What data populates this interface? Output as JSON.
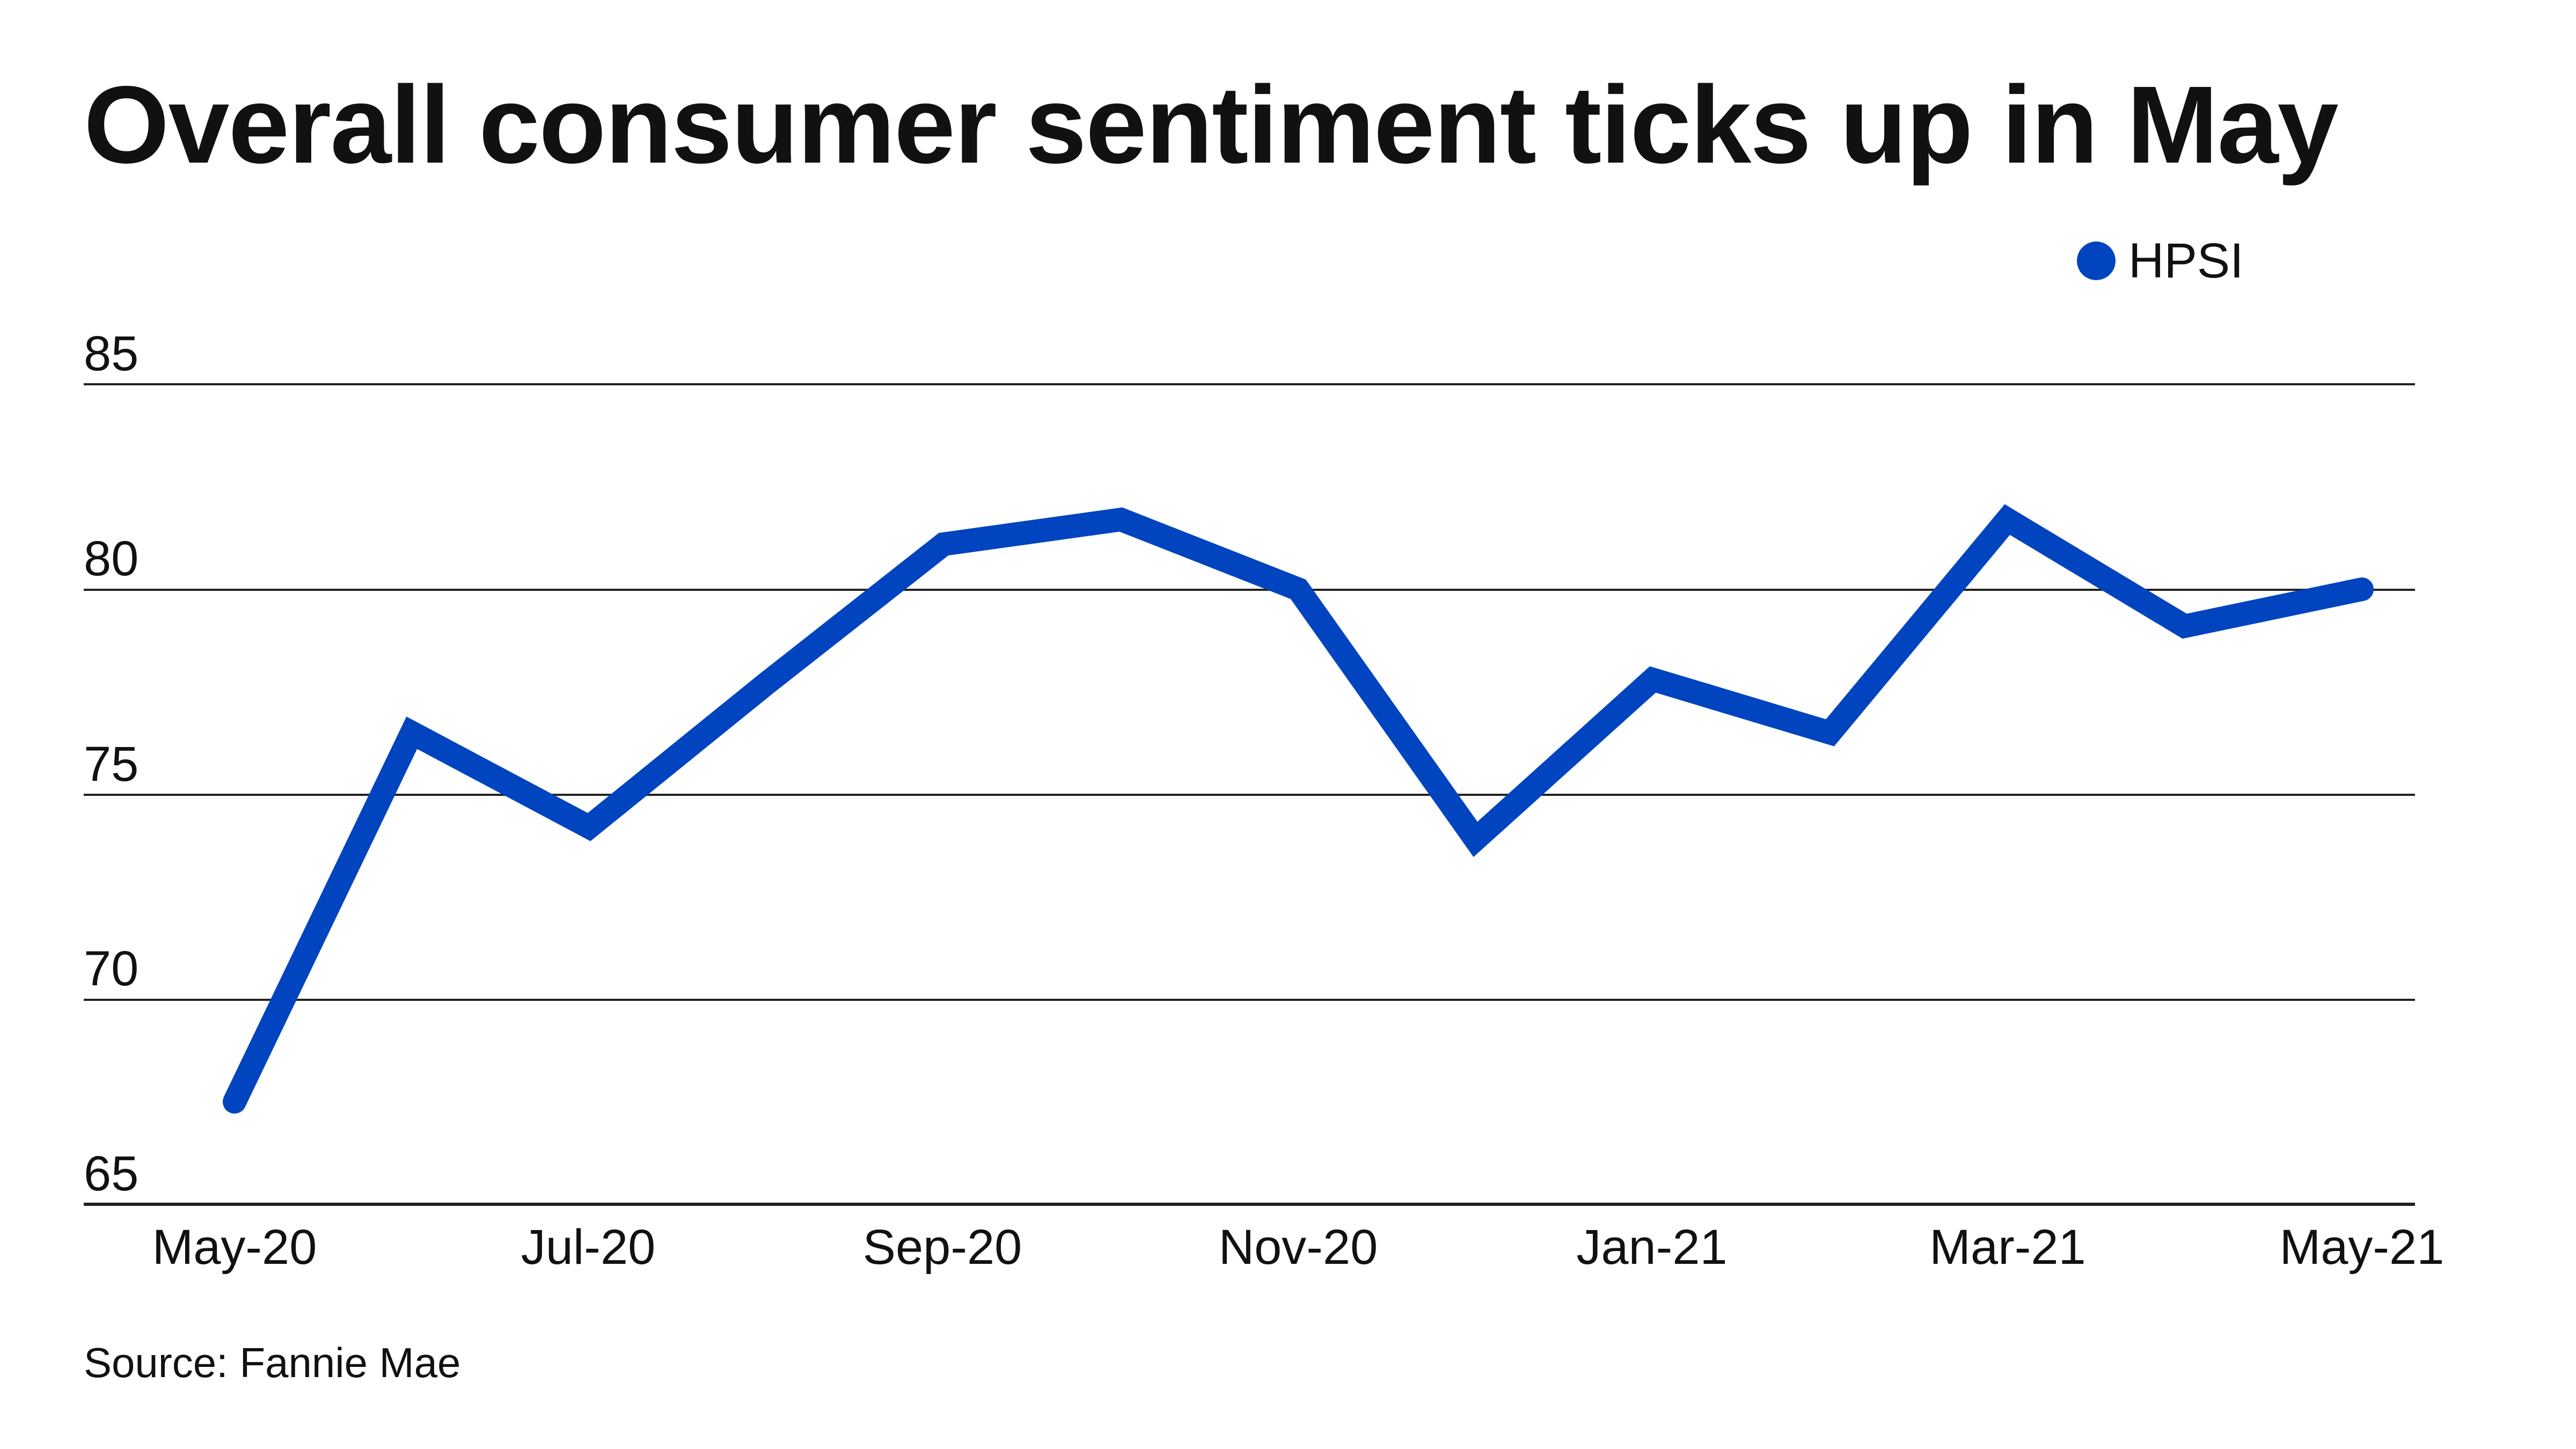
{
  "title": "Overall consumer sentiment ticks up in May",
  "legend": {
    "label": "HPSI",
    "color": "#0044bf"
  },
  "source": "Source: Fannie Mae",
  "y_ticks": [
    "85",
    "80",
    "75",
    "70",
    "65"
  ],
  "x_ticks": [
    "May-20",
    "Jul-20",
    "Sep-20",
    "Nov-20",
    "Jan-21",
    "Mar-21",
    "May-21"
  ],
  "chart_data": {
    "type": "line",
    "title": "Overall consumer sentiment ticks up in May",
    "xlabel": "",
    "ylabel": "",
    "ylim": [
      65,
      85
    ],
    "y_ticks": [
      65,
      70,
      75,
      80,
      85
    ],
    "grid": true,
    "legend_position": "top-right",
    "categories": [
      "May-20",
      "Jun-20",
      "Jul-20",
      "Aug-20",
      "Sep-20",
      "Oct-20",
      "Nov-20",
      "Dec-20",
      "Jan-21",
      "Feb-21",
      "Mar-21",
      "Apr-21",
      "May-21"
    ],
    "series": [
      {
        "name": "HPSI",
        "color": "#0044bf",
        "values": [
          67.5,
          76.5,
          74.2,
          77.7,
          81.1,
          81.7,
          80.0,
          73.9,
          77.8,
          76.5,
          81.7,
          79.1,
          80.0
        ]
      }
    ],
    "source": "Source: Fannie Mae"
  }
}
